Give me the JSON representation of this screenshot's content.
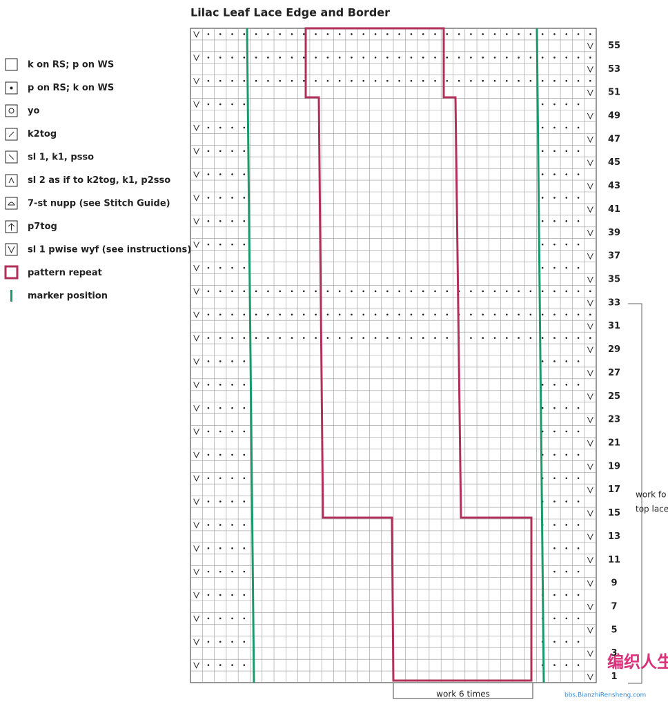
{
  "title": "Lilac Leaf Lace Edge and Border",
  "legend": [
    {
      "label": "k on RS; p on WS"
    },
    {
      "label": "p on RS; k on WS"
    },
    {
      "label": "yo"
    },
    {
      "label": "k2tog"
    },
    {
      "label": "sl 1, k1, psso"
    },
    {
      "label": "sl 2 as if to k2tog, k1, p2sso"
    },
    {
      "label": "7-st nupp (see Stitch Guide)"
    },
    {
      "label": "p7tog"
    },
    {
      "label": "sl 1 pwise wyf (see instructions)"
    },
    {
      "label": "pattern repeat"
    },
    {
      "label": "marker position"
    }
  ],
  "row_numbers": [
    55,
    53,
    51,
    49,
    47,
    45,
    43,
    41,
    39,
    37,
    35,
    33,
    31,
    29,
    27,
    25,
    23,
    21,
    19,
    17,
    15,
    13,
    11,
    9,
    7,
    5,
    3,
    1
  ],
  "side_note": [
    "work fo",
    "top lace"
  ],
  "repeat_note": "work 6 times",
  "watermark": {
    "logo": "编织人生",
    "url": "bbs.BianzhiRensheng.com"
  }
}
